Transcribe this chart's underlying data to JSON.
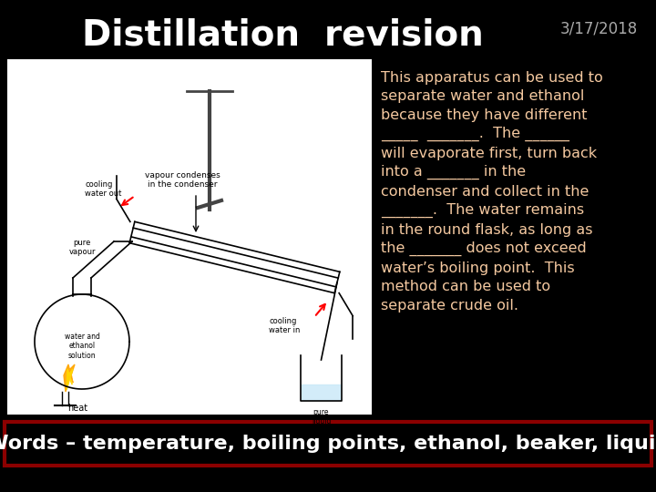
{
  "bg_color": "#000000",
  "title": "Distillation  revision",
  "date": "3/17/2018",
  "title_color": "#ffffff",
  "date_color": "#aaaaaa",
  "title_fontsize": 28,
  "date_fontsize": 12,
  "body_text": "This apparatus can be used to\nseparate water and ethanol\nbecause they have different\n_____  _______.  The ______\nwill evaporate first, turn back\ninto a _______ in the\ncondenser and collect in the\n_______.  The water remains\nin the round flask, as long as\nthe _______ does not exceed\nwater’s boiling point.  This\nmethod can be used to\nseparate crude oil.",
  "body_color": "#f5c9a0",
  "body_fontsize": 11.5,
  "words_text": "Words – temperature, boiling points, ethanol, beaker, liquid",
  "words_color": "#ffffff",
  "words_fontsize": 16,
  "words_box_color": "#8b0000",
  "diag_bg": "#ffffff"
}
